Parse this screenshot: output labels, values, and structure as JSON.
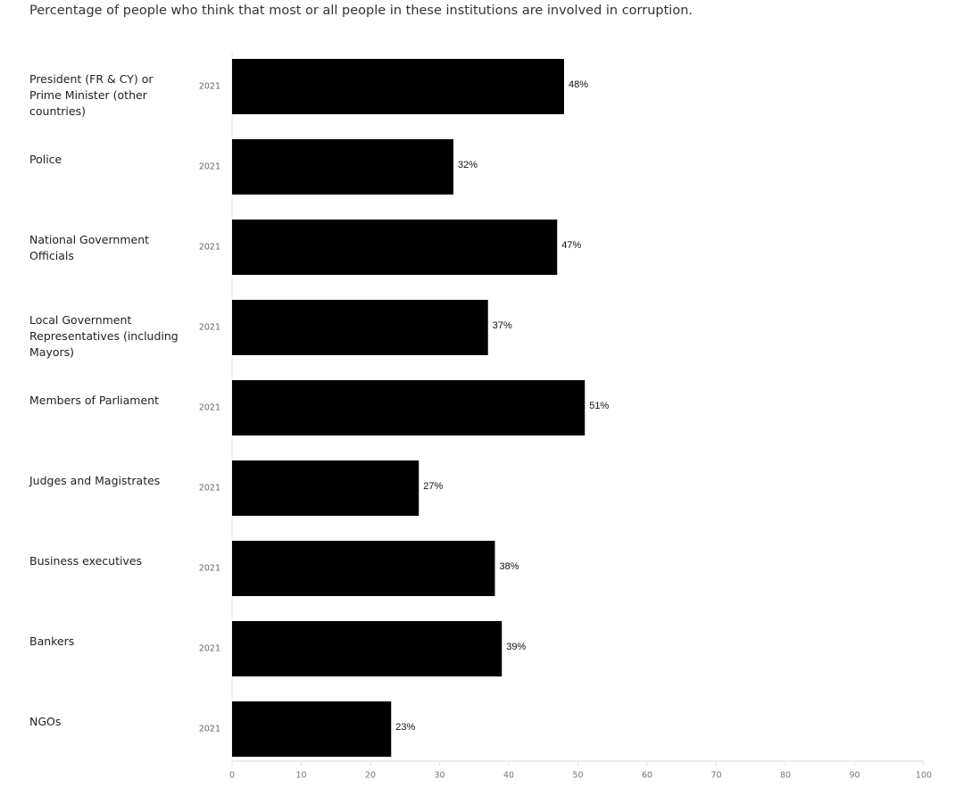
{
  "chart_data": {
    "type": "bar",
    "orientation": "horizontal",
    "title": "Percentage of people who think that most or all people in these institutions are involved in corruption.",
    "categories": [
      "President (FR & CY) or Prime Minister (other countries)",
      "Police",
      "National Government Officials",
      "Local Government Representatives (including Mayors)",
      "Members of Parliament",
      "Judges and Magistrates",
      "Business executives",
      "Bankers",
      "NGOs"
    ],
    "years": [
      "2021",
      "2021",
      "2021",
      "2021",
      "2021",
      "2021",
      "2021",
      "2021",
      "2021"
    ],
    "values": [
      48,
      32,
      47,
      37,
      51,
      27,
      38,
      39,
      23
    ],
    "value_labels": [
      "48%",
      "32%",
      "47%",
      "37%",
      "51%",
      "27%",
      "38%",
      "39%",
      "23%"
    ],
    "color": "#000000",
    "xlim": [
      0,
      100
    ],
    "xticks": [
      0,
      10,
      20,
      30,
      40,
      50,
      60,
      70,
      80,
      90,
      100
    ]
  }
}
